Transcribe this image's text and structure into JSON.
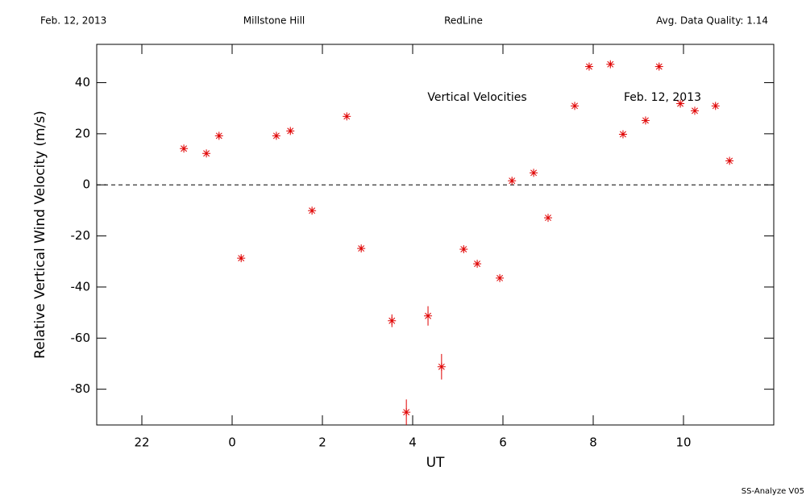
{
  "chart_data": {
    "type": "scatter",
    "header": [
      "Feb. 12, 2013",
      "Millstone Hill",
      "RedLine",
      "Avg. Data Quality: 1.14"
    ],
    "annotations": [
      "Vertical Velocities",
      "Feb. 12, 2013"
    ],
    "footer": "SS-Analyze V05",
    "x_label": "UT",
    "y_label": "Relative Vertical Wind Velocity (m/s)",
    "x": [
      -1.07,
      -0.57,
      -0.29,
      0.2,
      0.98,
      1.29,
      1.77,
      2.54,
      2.86,
      3.54,
      3.86,
      4.34,
      4.64,
      5.13,
      5.43,
      5.93,
      6.2,
      6.68,
      7.0,
      7.59,
      7.91,
      8.38,
      8.66,
      9.16,
      9.46,
      9.93,
      10.25,
      10.71,
      11.02
    ],
    "y": [
      14.2,
      12.3,
      19.2,
      -28.7,
      19.2,
      21.1,
      -10.1,
      26.8,
      -24.9,
      -53.2,
      -89,
      -51.3,
      -71.2,
      -25.2,
      -30.9,
      -36.5,
      1.6,
      4.7,
      -12.9,
      30.9,
      46.3,
      47.2,
      19.8,
      25.2,
      46.3,
      31.8,
      29.0,
      30.9,
      9.4
    ],
    "errors": [
      1,
      1,
      1,
      1,
      1,
      1,
      1,
      1,
      1,
      2.5,
      5,
      3.8,
      5,
      1,
      1,
      1,
      1,
      1,
      1,
      1,
      1,
      1,
      1,
      1,
      1,
      1,
      1,
      1,
      1
    ],
    "color": "#e00000",
    "xlim": [
      -3,
      12
    ],
    "xticks": [
      {
        "value": -2,
        "label": "22"
      },
      0,
      2,
      4,
      6,
      8,
      10
    ],
    "ylim": [
      -94,
      55
    ],
    "yticks": [
      -80,
      -60,
      -40,
      -20,
      0,
      20,
      40
    ],
    "hline": 0
  }
}
